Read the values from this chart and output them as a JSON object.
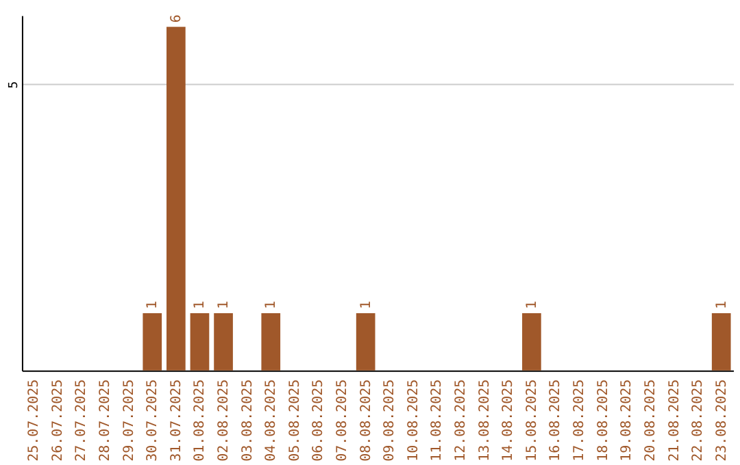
{
  "chart_data": {
    "type": "bar",
    "categories": [
      "25.07.2025",
      "26.07.2025",
      "27.07.2025",
      "28.07.2025",
      "29.07.2025",
      "30.07.2025",
      "31.07.2025",
      "01.08.2025",
      "02.08.2025",
      "03.08.2025",
      "04.08.2025",
      "05.08.2025",
      "06.08.2025",
      "07.08.2025",
      "08.08.2025",
      "09.08.2025",
      "10.08.2025",
      "11.08.2025",
      "12.08.2025",
      "13.08.2025",
      "14.08.2025",
      "15.08.2025",
      "16.08.2025",
      "17.08.2025",
      "18.08.2025",
      "19.08.2025",
      "20.08.2025",
      "21.08.2025",
      "22.08.2025",
      "23.08.2025"
    ],
    "values": [
      0,
      0,
      0,
      0,
      0,
      1,
      6,
      1,
      1,
      0,
      1,
      0,
      0,
      0,
      1,
      0,
      0,
      0,
      0,
      0,
      0,
      1,
      0,
      0,
      0,
      0,
      0,
      0,
      0,
      1
    ],
    "value_labels": [
      null,
      null,
      null,
      null,
      null,
      "1",
      "6",
      "1",
      "1",
      null,
      "1",
      null,
      null,
      null,
      "1",
      null,
      null,
      null,
      null,
      null,
      null,
      "1",
      null,
      null,
      null,
      null,
      null,
      null,
      null,
      "1"
    ],
    "color": "#a0582a",
    "ylim": [
      0,
      6.2
    ],
    "yticks": [
      5
    ],
    "grid": "y"
  }
}
